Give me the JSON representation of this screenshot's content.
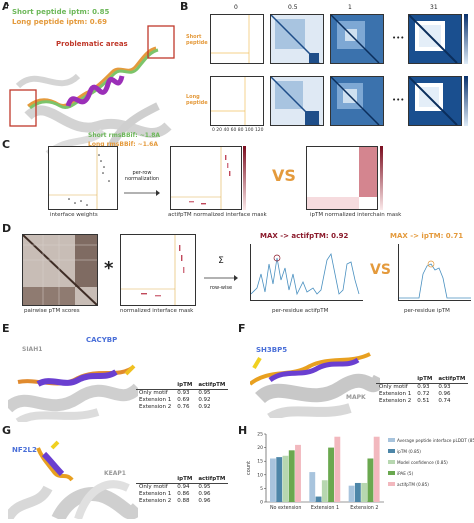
{
  "panels": {
    "A": {
      "label": "A",
      "short_iptm": "Short peptide iptm: 0.85",
      "long_iptm": "Long peptide iptm: 0.69",
      "problem_label": "Problematic areas",
      "short_rmsd": "Short rmsBBif: ~1.8A",
      "long_rmsd": "Long rmsBBif: ~1.6A"
    },
    "B": {
      "label": "B",
      "col_titles": [
        "0",
        "0.5",
        "1",
        "31"
      ],
      "row_labels": [
        "Short peptide",
        "Long peptide"
      ],
      "ellipsis": "•••",
      "y_ticks": [
        "0",
        "20",
        "40",
        "60",
        "80",
        "100",
        "120"
      ],
      "x_ticks": [
        "0 20 40 60 80 100 120"
      ],
      "colorbar_ticks": [
        "30",
        "25",
        "20",
        "15",
        "10",
        "5",
        "0"
      ]
    },
    "C": {
      "label": "C",
      "cap1": "interface weights",
      "arrow_label": "per-row normalization",
      "cap2": "actifpTM normalized interface mask",
      "vs": "VS",
      "cap3": "ipTM normalized interchain mask",
      "cb_ticks": [
        "0.10",
        "0.08",
        "0.06",
        "0.04",
        "0.02",
        "0.00"
      ],
      "y_ticks": [
        "0",
        "20",
        "40",
        "60",
        "80",
        "100",
        "120",
        "140"
      ],
      "x_ticks": "0 20 40 60 80 100 120 140"
    },
    "D": {
      "label": "D",
      "cap1": "pairwise pTM scores",
      "star": "*",
      "cap2": "normalized interface mask",
      "sum_label": "row-wise",
      "sigma": "Σ",
      "max_actif": "MAX -> actifpTM: 0.92",
      "vs": "VS",
      "max_iptm": "MAX -> ipTM: 0.71",
      "cap3": "per-residue actifpTM",
      "cap4": "per-residue ipTM"
    },
    "E": {
      "label": "E",
      "name1": "SIAH1",
      "name2": "CACYBP",
      "table": {
        "headers": [
          "",
          "ipTM",
          "actifpTM"
        ],
        "rows": [
          [
            "Only motif",
            "0.93",
            "0.95"
          ],
          [
            "Extension 1",
            "0.69",
            "0.92"
          ],
          [
            "Extension 2",
            "0.76",
            "0.92"
          ]
        ]
      }
    },
    "F": {
      "label": "F",
      "name1": "SH3BP5",
      "name2": "MAPK",
      "table": {
        "headers": [
          "",
          "ipTM",
          "actifpTM"
        ],
        "rows": [
          [
            "Only motif",
            "0.93",
            "0.93"
          ],
          [
            "Extension 1",
            "0.72",
            "0.96"
          ],
          [
            "Extension 2",
            "0.51",
            "0.74"
          ]
        ]
      }
    },
    "G": {
      "label": "G",
      "name1": "NF2L2",
      "name2": "KEAP1",
      "table": {
        "headers": [
          "",
          "ipTM",
          "actifpTM"
        ],
        "rows": [
          [
            "Only motif",
            "0.94",
            "0.95"
          ],
          [
            "Extension 1",
            "0.86",
            "0.96"
          ],
          [
            "Extension 2",
            "0.88",
            "0.96"
          ]
        ]
      }
    },
    "H": {
      "label": "H"
    }
  },
  "chart_data": {
    "type": "bar",
    "categories": [
      "No extension",
      "Extension 1",
      "Extension 2"
    ],
    "ylabel": "count",
    "ylim": [
      0,
      25
    ],
    "y_ticks": [
      0,
      5,
      10,
      15,
      20,
      25
    ],
    "legend_position": "right",
    "series": [
      {
        "name": "Average peptide interface pLDDT (85)",
        "color": "#a8c4dd",
        "values": [
          16,
          11,
          6
        ]
      },
      {
        "name": "ipTM (0.85)",
        "color": "#4d86a8",
        "values": [
          16.5,
          2,
          7
        ]
      },
      {
        "name": "Model confidence (0.85)",
        "color": "#b7d7b0",
        "values": [
          17,
          8,
          7
        ]
      },
      {
        "name": "iPAE (5)",
        "color": "#6aa84f",
        "values": [
          19,
          20,
          16
        ]
      },
      {
        "name": "actifpTM (0.85)",
        "color": "#f2b8be",
        "values": [
          21,
          24,
          24
        ]
      }
    ]
  }
}
